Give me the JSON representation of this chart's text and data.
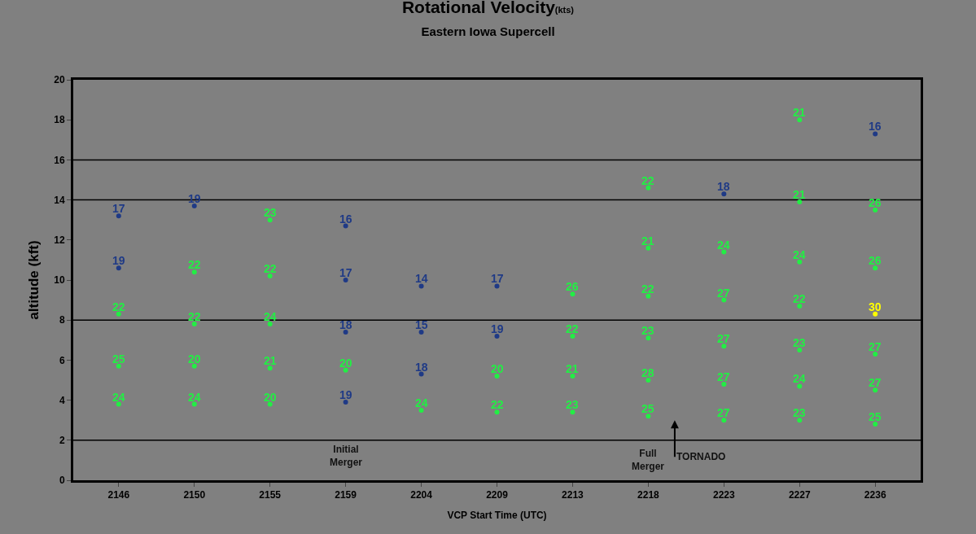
{
  "chart_data": {
    "type": "scatter",
    "title": "Rotational Velocity(kts)",
    "subtitle": "Eastern Iowa Supercell",
    "xlabel": "VCP Start Time (UTC)",
    "ylabel": "altitude (kft)",
    "categories": [
      "2146",
      "2150",
      "2155",
      "2159",
      "2204",
      "2209",
      "2213",
      "2218",
      "2223",
      "2227",
      "2236"
    ],
    "ylim": [
      0,
      20
    ],
    "yticks": [
      0,
      2,
      4,
      6,
      8,
      10,
      12,
      14,
      16,
      18,
      20
    ],
    "grid": false,
    "marker": "circle",
    "series": [
      {
        "values": [
          3.8,
          3.8,
          3.8,
          3.9,
          3.5,
          3.4,
          3.4,
          3.2,
          3.0,
          3.0,
          2.8
        ],
        "colors": [
          "#22ee44",
          "#22ee44",
          "#22ee44",
          "#1f3a86",
          "#22ee44",
          "#22ee44",
          "#22ee44",
          "#22ee44",
          "#22ee44",
          "#22ee44",
          "#22ee44"
        ]
      },
      {
        "values": [
          5.7,
          5.7,
          5.6,
          5.5,
          5.3,
          5.2,
          5.2,
          5.0,
          4.8,
          4.7,
          4.5
        ],
        "colors": [
          "#22ee44",
          "#22ee44",
          "#22ee44",
          "#22ee44",
          "#1f3a86",
          "#22ee44",
          "#22ee44",
          "#22ee44",
          "#22ee44",
          "#22ee44",
          "#22ee44"
        ]
      },
      {
        "values": [
          8.3,
          7.8,
          7.8,
          7.4,
          7.4,
          7.2,
          7.2,
          7.1,
          6.7,
          6.5,
          6.3
        ],
        "colors": [
          "#22ee44",
          "#22ee44",
          "#22ee44",
          "#1f3a86",
          "#1f3a86",
          "#1f3a86",
          "#22ee44",
          "#22ee44",
          "#22ee44",
          "#22ee44",
          "#22ee44"
        ]
      },
      {
        "values": [
          10.6,
          10.4,
          10.2,
          10.0,
          9.7,
          9.7,
          9.3,
          9.2,
          9.0,
          8.7,
          8.3
        ],
        "colors": [
          "#1f3a86",
          "#22ee44",
          "#22ee44",
          "#1f3a86",
          "#1f3a86",
          "#1f3a86",
          "#22ee44",
          "#22ee44",
          "#22ee44",
          "#22ee44",
          "#ffff00"
        ]
      },
      {
        "values": [
          13.2,
          13.7,
          13.0,
          12.7,
          null,
          null,
          null,
          11.6,
          11.4,
          10.9,
          10.6
        ],
        "colors": [
          "#1f3a86",
          "#1f3a86",
          "#22ee44",
          "#1f3a86",
          null,
          null,
          null,
          "#22ee44",
          "#22ee44",
          "#22ee44",
          "#22ee44"
        ]
      },
      {
        "values": [
          null,
          null,
          null,
          null,
          null,
          null,
          null,
          14.6,
          14.3,
          13.9,
          13.5
        ],
        "colors": [
          null,
          null,
          null,
          null,
          null,
          null,
          null,
          "#22ee44",
          "#1f3a86",
          "#22ee44",
          "#22ee44"
        ]
      },
      {
        "values": [
          null,
          null,
          null,
          null,
          null,
          null,
          null,
          null,
          null,
          18.0,
          17.3
        ],
        "colors": [
          null,
          null,
          null,
          null,
          null,
          null,
          null,
          null,
          null,
          "#22ee44",
          "#1f3a86"
        ]
      }
    ],
    "ref_lines": [
      {
        "axis": "y",
        "value": 2
      },
      {
        "axis": "y",
        "value": 8
      },
      {
        "axis": "y",
        "value": 14
      },
      {
        "axis": "y",
        "value": 16
      }
    ],
    "annotations": [
      "Initial\nMerger",
      "Full\nMerger",
      "TORNADO",
      {
        "text": "17",
        "x": "2146",
        "y": 13.2
      },
      {
        "text": "19",
        "x": "2146",
        "y": 10.6
      },
      {
        "text": "19",
        "x": "2150",
        "y": 13.7
      },
      {
        "text": "16",
        "x": "2159",
        "y": 12.7
      },
      {
        "text": "17",
        "x": "2159",
        "y": 10.0
      },
      {
        "text": "18",
        "x": "2159",
        "y": 7.4
      },
      {
        "text": "19",
        "x": "2159",
        "y": 3.9
      },
      {
        "text": "14",
        "x": "2204",
        "y": 9.7
      },
      {
        "text": "15",
        "x": "2204",
        "y": 7.4
      },
      {
        "text": "18",
        "x": "2204",
        "y": 5.3
      },
      {
        "text": "17",
        "x": "2209",
        "y": 9.7
      },
      {
        "text": "19",
        "x": "2209",
        "y": 7.2
      },
      {
        "text": "18",
        "x": "2223",
        "y": 14.3
      },
      {
        "text": "16",
        "x": "2236",
        "y": 17.3
      },
      {
        "text": "22",
        "x": "2146",
        "y": 8.3
      },
      {
        "text": "25",
        "x": "2146",
        "y": 5.7
      },
      {
        "text": "24",
        "x": "2146",
        "y": 3.8
      },
      {
        "text": "22",
        "x": "2150",
        "y": 10.4
      },
      {
        "text": "22",
        "x": "2150",
        "y": 7.8
      },
      {
        "text": "20",
        "x": "2150",
        "y": 5.7
      },
      {
        "text": "24",
        "x": "2150",
        "y": 3.8
      },
      {
        "text": "23",
        "x": "2155",
        "y": 13.0
      },
      {
        "text": "22",
        "x": "2155",
        "y": 10.2
      },
      {
        "text": "24",
        "x": "2155",
        "y": 7.8
      },
      {
        "text": "21",
        "x": "2155",
        "y": 5.6
      },
      {
        "text": "20",
        "x": "2155",
        "y": 3.8
      },
      {
        "text": "20",
        "x": "2159",
        "y": 5.5
      },
      {
        "text": "24",
        "x": "2204",
        "y": 3.5
      },
      {
        "text": "20",
        "x": "2209",
        "y": 5.2
      },
      {
        "text": "22",
        "x": "2209",
        "y": 3.4
      },
      {
        "text": "26",
        "x": "2213",
        "y": 9.3
      },
      {
        "text": "22",
        "x": "2213",
        "y": 7.2
      },
      {
        "text": "21",
        "x": "2213",
        "y": 5.2
      },
      {
        "text": "23",
        "x": "2213",
        "y": 3.4
      },
      {
        "text": "22",
        "x": "2218",
        "y": 14.6
      },
      {
        "text": "21",
        "x": "2218",
        "y": 11.6
      },
      {
        "text": "22",
        "x": "2218",
        "y": 9.2
      },
      {
        "text": "23",
        "x": "2218",
        "y": 7.1
      },
      {
        "text": "28",
        "x": "2218",
        "y": 5.0
      },
      {
        "text": "25",
        "x": "2218",
        "y": 3.2
      },
      {
        "text": "24",
        "x": "2223",
        "y": 11.4
      },
      {
        "text": "27",
        "x": "2223",
        "y": 9.0
      },
      {
        "text": "27",
        "x": "2223",
        "y": 6.7
      },
      {
        "text": "27",
        "x": "2223",
        "y": 4.8
      },
      {
        "text": "27",
        "x": "2223",
        "y": 3.0
      },
      {
        "text": "21",
        "x": "2227",
        "y": 18.0
      },
      {
        "text": "21",
        "x": "2227",
        "y": 13.9
      },
      {
        "text": "24",
        "x": "2227",
        "y": 10.9
      },
      {
        "text": "22",
        "x": "2227",
        "y": 8.7
      },
      {
        "text": "23",
        "x": "2227",
        "y": 6.5
      },
      {
        "text": "24",
        "x": "2227",
        "y": 4.7
      },
      {
        "text": "23",
        "x": "2227",
        "y": 3.0
      },
      {
        "text": "26",
        "x": "2236",
        "y": 13.5
      },
      {
        "text": "26",
        "x": "2236",
        "y": 10.6
      },
      {
        "text": "27",
        "x": "2236",
        "y": 6.3
      },
      {
        "text": "27",
        "x": "2236",
        "y": 4.5
      },
      {
        "text": "25",
        "x": "2236",
        "y": 2.8
      },
      {
        "text": "30",
        "x": "2236",
        "y": 8.3
      }
    ]
  }
}
